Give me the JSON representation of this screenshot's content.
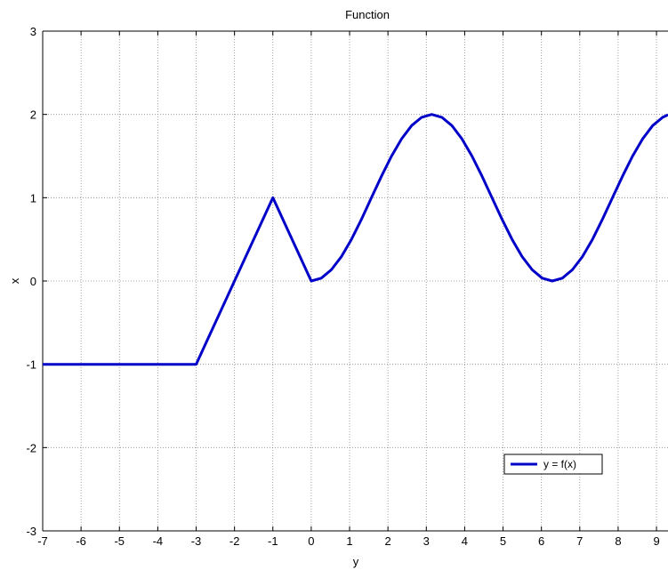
{
  "chart_data": {
    "type": "line",
    "title": "Function",
    "xlabel": "y",
    "ylabel": "x",
    "xlim": [
      -7,
      9.3
    ],
    "ylim": [
      -3,
      3
    ],
    "xticks": [
      "-7",
      "-6",
      "-5",
      "-4",
      "-3",
      "-2",
      "-1",
      "0",
      "1",
      "2",
      "3",
      "4",
      "5",
      "6",
      "7",
      "8",
      "9"
    ],
    "yticks": [
      "-3",
      "-2",
      "-1",
      "0",
      "1",
      "2",
      "3"
    ],
    "grid": true,
    "legend_position": "lower-right",
    "series": [
      {
        "name": "y = f(x)",
        "color": "#0000c8",
        "x": [
          -7,
          -3,
          -1,
          0,
          0.2618,
          0.5236,
          0.7854,
          1.0472,
          1.309,
          1.5708,
          1.8326,
          2.0944,
          2.3562,
          2.618,
          2.8798,
          3.1416,
          3.4034,
          3.6652,
          3.927,
          4.1888,
          4.4506,
          4.7124,
          4.9742,
          5.236,
          5.4978,
          5.7596,
          6.0214,
          6.2832,
          6.545,
          6.8068,
          7.0686,
          7.3304,
          7.5922,
          7.854,
          8.1158,
          8.3776,
          8.6394,
          8.9012,
          9.163,
          9.3
        ],
        "y": [
          -1,
          -1,
          1,
          0,
          0.0341,
          0.134,
          0.2929,
          0.5,
          0.7412,
          1.0,
          1.2588,
          1.5,
          1.7071,
          1.866,
          1.9659,
          2.0,
          1.9659,
          1.866,
          1.7071,
          1.5,
          1.2588,
          1.0,
          0.7412,
          0.5,
          0.2929,
          0.134,
          0.0341,
          0.0,
          0.0341,
          0.134,
          0.2929,
          0.5,
          0.7412,
          1.0,
          1.2588,
          1.5,
          1.7071,
          1.866,
          1.9659,
          1.9959
        ]
      }
    ]
  }
}
